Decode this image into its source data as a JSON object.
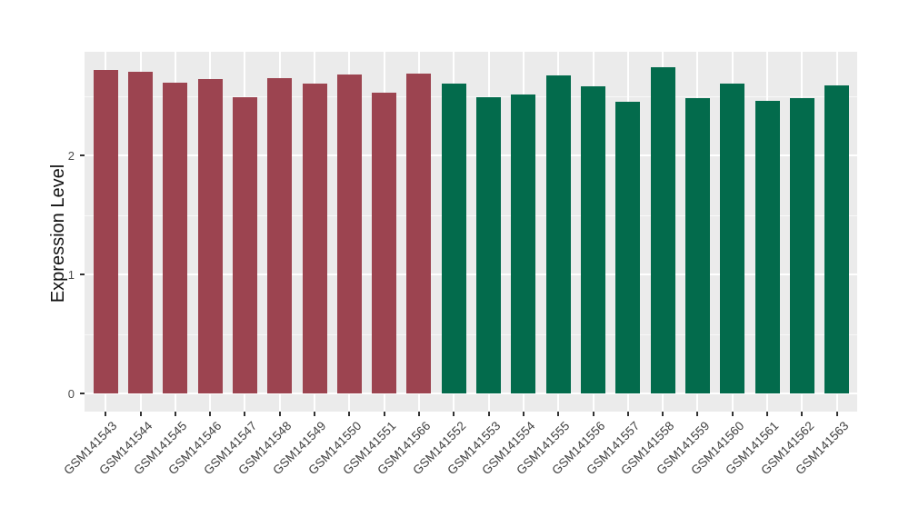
{
  "figure": {
    "background": "#FFFFFF",
    "panel_background": "#EBEBEB",
    "grid_color": "#FFFFFF"
  },
  "chart_data": {
    "type": "bar",
    "title": "",
    "xlabel": "",
    "ylabel": "Expression Level",
    "ylim": [
      0,
      2.87
    ],
    "y_ticks": [
      "0",
      "1",
      "2"
    ],
    "y_minor_ticks": [
      0.5,
      1.5,
      2.5
    ],
    "grid": "on",
    "legend_position": "none",
    "colors": {
      "group_a": "#9C4450",
      "group_b": "#036B4C"
    },
    "bars": [
      {
        "category": "GSM141543",
        "value": 2.72,
        "group": "group_a"
      },
      {
        "category": "GSM141544",
        "value": 2.7,
        "group": "group_a"
      },
      {
        "category": "GSM141545",
        "value": 2.61,
        "group": "group_a"
      },
      {
        "category": "GSM141546",
        "value": 2.64,
        "group": "group_a"
      },
      {
        "category": "GSM141547",
        "value": 2.49,
        "group": "group_a"
      },
      {
        "category": "GSM141548",
        "value": 2.65,
        "group": "group_a"
      },
      {
        "category": "GSM141549",
        "value": 2.6,
        "group": "group_a"
      },
      {
        "category": "GSM141550",
        "value": 2.68,
        "group": "group_a"
      },
      {
        "category": "GSM141551",
        "value": 2.53,
        "group": "group_a"
      },
      {
        "category": "GSM141566",
        "value": 2.69,
        "group": "group_a"
      },
      {
        "category": "GSM141552",
        "value": 2.6,
        "group": "group_b"
      },
      {
        "category": "GSM141553",
        "value": 2.49,
        "group": "group_b"
      },
      {
        "category": "GSM141554",
        "value": 2.51,
        "group": "group_b"
      },
      {
        "category": "GSM141555",
        "value": 2.67,
        "group": "group_b"
      },
      {
        "category": "GSM141556",
        "value": 2.58,
        "group": "group_b"
      },
      {
        "category": "GSM141557",
        "value": 2.45,
        "group": "group_b"
      },
      {
        "category": "GSM141558",
        "value": 2.74,
        "group": "group_b"
      },
      {
        "category": "GSM141559",
        "value": 2.48,
        "group": "group_b"
      },
      {
        "category": "GSM141560",
        "value": 2.6,
        "group": "group_b"
      },
      {
        "category": "GSM141561",
        "value": 2.46,
        "group": "group_b"
      },
      {
        "category": "GSM141562",
        "value": 2.48,
        "group": "group_b"
      },
      {
        "category": "GSM141563",
        "value": 2.59,
        "group": "group_b"
      }
    ]
  }
}
